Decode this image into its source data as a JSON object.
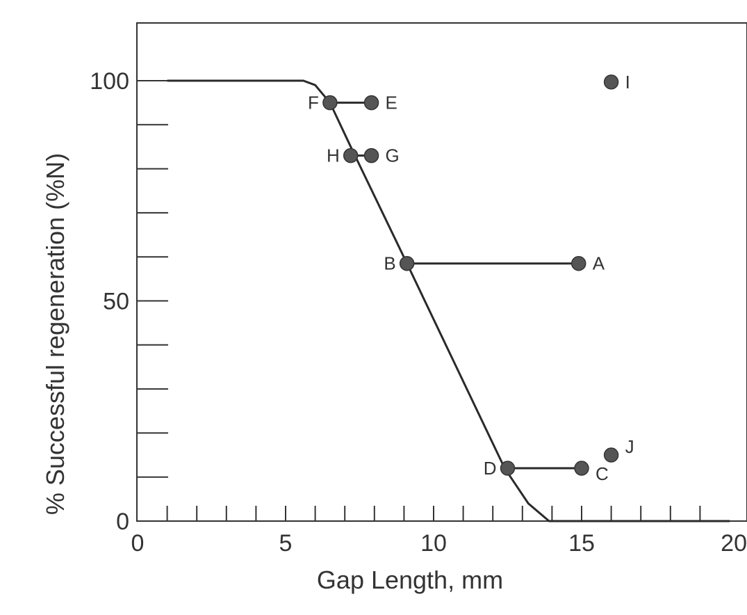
{
  "chart_data": {
    "type": "line",
    "title": "",
    "xlabel": "Gap Length, mm",
    "ylabel": "% Successful regeneration (%N)",
    "xlim": [
      0,
      20
    ],
    "ylim": [
      0,
      100
    ],
    "x_ticks_labeled": [
      "0",
      "5",
      "10",
      "15",
      "20"
    ],
    "y_ticks_labeled": [
      "0",
      "50",
      "100"
    ],
    "grid": false,
    "series": [
      {
        "type": "line",
        "x": [
          1,
          5.6,
          6.0,
          6.5,
          7.2,
          9.1,
          12.4,
          13.2,
          13.9,
          20
        ],
        "y": [
          100,
          100,
          99,
          95,
          85,
          58.5,
          12,
          4,
          0,
          0
        ]
      }
    ],
    "points": [
      {
        "label": "A",
        "x": 14.9,
        "y": 58.5
      },
      {
        "label": "B",
        "x": 9.1,
        "y": 58.5
      },
      {
        "label": "C",
        "x": 15.0,
        "y": 12
      },
      {
        "label": "D",
        "x": 12.5,
        "y": 12
      },
      {
        "label": "E",
        "x": 7.9,
        "y": 95
      },
      {
        "label": "F",
        "x": 6.5,
        "y": 95
      },
      {
        "label": "G",
        "x": 7.9,
        "y": 83
      },
      {
        "label": "H",
        "x": 7.2,
        "y": 83
      },
      {
        "label": "I",
        "x": 16.0,
        "y": 99.7
      },
      {
        "label": "J",
        "x": 16.0,
        "y": 15
      }
    ],
    "connectors": [
      [
        "F",
        "E"
      ],
      [
        "H",
        "G"
      ],
      [
        "B",
        "A"
      ],
      [
        "D",
        "C"
      ]
    ]
  }
}
